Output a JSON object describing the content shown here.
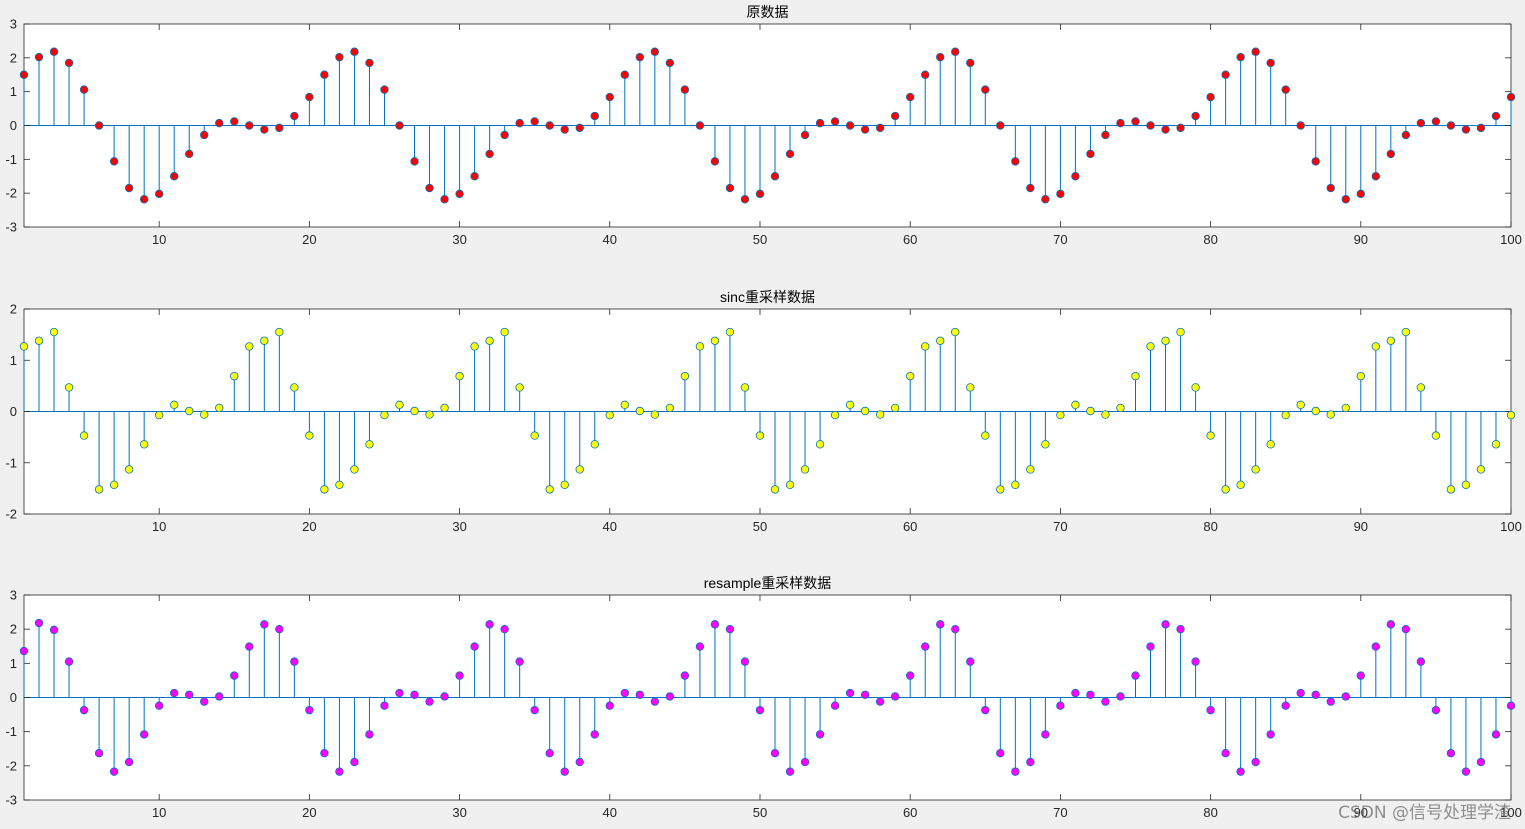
{
  "watermark": "CSDN @信号处理学渣",
  "colors": {
    "background": "#f0f0f0",
    "axes_background": "#ffffff",
    "stem_line": "#0072bd",
    "marker_edge": "#0072bd"
  },
  "chart_data": [
    {
      "type": "stem",
      "title": "原数据",
      "xlim": [
        1,
        100
      ],
      "ylim": [
        -3,
        3
      ],
      "xticks": [
        10,
        20,
        30,
        40,
        50,
        60,
        70,
        80,
        90,
        100
      ],
      "yticks": [
        -3,
        -2,
        -1,
        0,
        1,
        2,
        3
      ],
      "grid": false,
      "marker_color": "#ff0000",
      "period": 20,
      "pattern": [
        1.5,
        2.02,
        2.18,
        1.85,
        1.06,
        0.0,
        -1.06,
        -1.85,
        -2.18,
        -2.02,
        -1.5,
        -0.84,
        -0.28,
        0.07,
        0.12,
        0.0,
        -0.12,
        -0.07,
        0.28,
        0.84
      ],
      "x": [
        1,
        100
      ]
    },
    {
      "type": "stem",
      "title": "sinc重采样数据",
      "xlim": [
        1,
        100
      ],
      "ylim": [
        -2,
        2
      ],
      "xticks": [
        10,
        20,
        30,
        40,
        50,
        60,
        70,
        80,
        90,
        100
      ],
      "yticks": [
        -2,
        -1,
        0,
        1,
        2
      ],
      "grid": false,
      "marker_color": "#ffff00",
      "period": 15,
      "pattern": [
        1.27,
        1.38,
        1.55,
        0.47,
        -0.47,
        -1.52,
        -1.43,
        -1.13,
        -0.64,
        -0.07,
        0.13,
        0.01,
        -0.06,
        0.07,
        0.69,
        1.13,
        1.47,
        1.49,
        0.52,
        -0.51,
        -1.49,
        -1.47,
        -1.12,
        -0.66,
        -0.07,
        0.1,
        0.03,
        -0.07,
        0.09,
        0.68,
        1.13,
        1.45,
        1.5,
        0.51,
        -0.5,
        -1.49,
        -1.46,
        -1.12,
        -0.65,
        -0.07,
        0.1,
        0.02,
        -0.07,
        0.09,
        0.68
      ],
      "pattern_start": 1,
      "x": [
        1,
        100
      ]
    },
    {
      "type": "stem",
      "title": "resample重采样数据",
      "xlim": [
        1,
        100
      ],
      "ylim": [
        -3,
        3
      ],
      "xticks": [
        10,
        20,
        30,
        40,
        50,
        60,
        70,
        80,
        90,
        100
      ],
      "yticks": [
        -3,
        -2,
        -1,
        0,
        1,
        2,
        3
      ],
      "grid": false,
      "marker_color": "#ff00ff",
      "period": 15,
      "pattern": [
        1.05,
        -0.37,
        -1.63,
        -2.17,
        -1.89,
        -1.08,
        -0.24,
        0.13,
        0.08,
        -0.12,
        0.03,
        0.64,
        1.49,
        2.14,
        2.0
      ],
      "pattern_start": 5,
      "first_value": 1.36,
      "second_value": 2.18,
      "third_value": 1.98,
      "x": [
        1,
        100
      ]
    }
  ]
}
